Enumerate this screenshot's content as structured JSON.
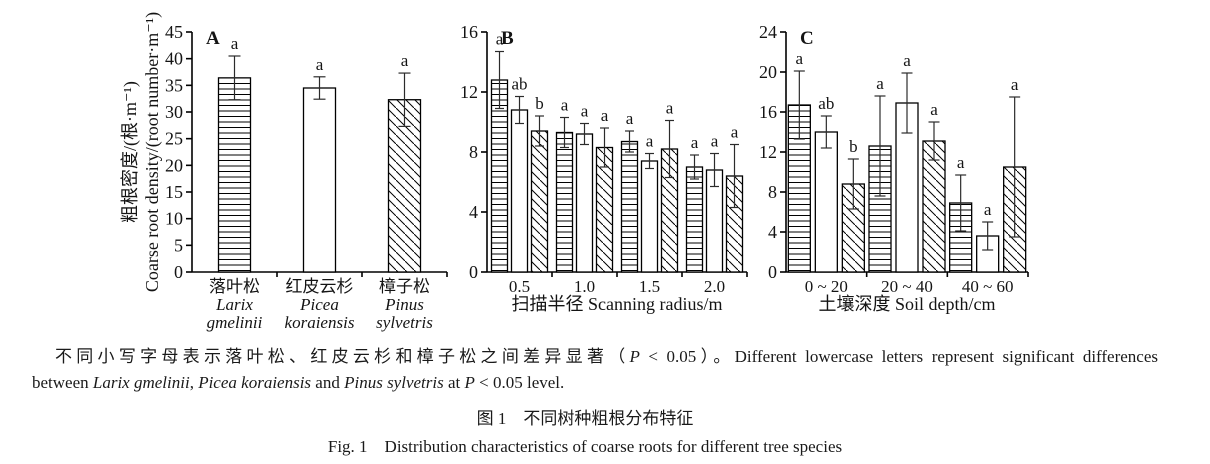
{
  "figure": {
    "note_lines": [
      {
        "segments": [
          {
            "text": "不同小写字母表示落叶松、红皮云杉和樟子松之间差异显著（",
            "italic": false
          },
          {
            "text": "P",
            "italic": true
          },
          {
            "text": " < 0.05）。Different lowercase letters represent significant differences",
            "italic": false
          }
        ]
      },
      {
        "segments": [
          {
            "text": "between ",
            "italic": false
          },
          {
            "text": "Larix gmelinii",
            "italic": true
          },
          {
            "text": ", ",
            "italic": false
          },
          {
            "text": "Picea koraiensis",
            "italic": true
          },
          {
            "text": " and ",
            "italic": false
          },
          {
            "text": "Pinus sylvetris",
            "italic": true
          },
          {
            "text": " at ",
            "italic": false
          },
          {
            "text": "P",
            "italic": true
          },
          {
            "text": " < 0.05 level.",
            "italic": false
          }
        ]
      }
    ],
    "caption_zh": "图 1　不同树种粗根分布特征",
    "caption_en": "Fig. 1　Distribution characteristics of coarse roots for different tree species"
  },
  "chart_data": [
    {
      "type": "bar",
      "panel_label": "A",
      "ylabel_zh": "粗根密度/(根·m⁻¹)",
      "ylabel_en": "Coarse root density/(root number·m⁻¹)",
      "xlabel": "",
      "ylim": [
        0,
        45
      ],
      "ytick_step": 5,
      "groups": [
        {
          "label_lines": [
            {
              "text": "落叶松",
              "italic": false
            },
            {
              "text": "Larix",
              "italic": true
            },
            {
              "text": "gmelinii",
              "italic": true
            }
          ],
          "bars": [
            {
              "species": "Larix gmelinii",
              "pattern": "horizontal",
              "value": 36.4,
              "err": 4.1,
              "letter": "a"
            }
          ]
        },
        {
          "label_lines": [
            {
              "text": "红皮云杉",
              "italic": false
            },
            {
              "text": "Picea",
              "italic": true
            },
            {
              "text": "koraiensis",
              "italic": true
            }
          ],
          "bars": [
            {
              "species": "Picea koraiensis",
              "pattern": "plain",
              "value": 34.5,
              "err": 2.1,
              "letter": "a"
            }
          ]
        },
        {
          "label_lines": [
            {
              "text": "樟子松",
              "italic": false
            },
            {
              "text": "Pinus",
              "italic": true
            },
            {
              "text": "sylvetris",
              "italic": true
            }
          ],
          "bars": [
            {
              "species": "Pinus sylvetris",
              "pattern": "diagonal",
              "value": 32.3,
              "err": 5.0,
              "letter": "a"
            }
          ]
        }
      ]
    },
    {
      "type": "bar",
      "panel_label": "B",
      "xlabel": "扫描半径 Scanning radius/m",
      "ylim": [
        0,
        16
      ],
      "ytick_step": 4,
      "groups": [
        {
          "label_lines": [
            {
              "text": "0.5",
              "italic": false
            }
          ],
          "bars": [
            {
              "species": "Larix gmelinii",
              "pattern": "horizontal",
              "value": 12.8,
              "err": 1.9,
              "letter": "a"
            },
            {
              "species": "Picea koraiensis",
              "pattern": "plain",
              "value": 10.8,
              "err": 0.9,
              "letter": "ab"
            },
            {
              "species": "Pinus sylvetris",
              "pattern": "diagonal",
              "value": 9.4,
              "err": 1.0,
              "letter": "b"
            }
          ]
        },
        {
          "label_lines": [
            {
              "text": "1.0",
              "italic": false
            }
          ],
          "bars": [
            {
              "species": "Larix gmelinii",
              "pattern": "horizontal",
              "value": 9.3,
              "err": 1.0,
              "letter": "a"
            },
            {
              "species": "Picea koraiensis",
              "pattern": "plain",
              "value": 9.2,
              "err": 0.7,
              "letter": "a"
            },
            {
              "species": "Pinus sylvetris",
              "pattern": "diagonal",
              "value": 8.3,
              "err": 1.3,
              "letter": "a"
            }
          ]
        },
        {
          "label_lines": [
            {
              "text": "1.5",
              "italic": false
            }
          ],
          "bars": [
            {
              "species": "Larix gmelinii",
              "pattern": "horizontal",
              "value": 8.7,
              "err": 0.7,
              "letter": "a"
            },
            {
              "species": "Picea koraiensis",
              "pattern": "plain",
              "value": 7.4,
              "err": 0.5,
              "letter": "a"
            },
            {
              "species": "Pinus sylvetris",
              "pattern": "diagonal",
              "value": 8.2,
              "err": 1.9,
              "letter": "a"
            }
          ]
        },
        {
          "label_lines": [
            {
              "text": "2.0",
              "italic": false
            }
          ],
          "bars": [
            {
              "species": "Larix gmelinii",
              "pattern": "horizontal",
              "value": 7.0,
              "err": 0.8,
              "letter": "a"
            },
            {
              "species": "Picea koraiensis",
              "pattern": "plain",
              "value": 6.8,
              "err": 1.1,
              "letter": "a"
            },
            {
              "species": "Pinus sylvetris",
              "pattern": "diagonal",
              "value": 6.4,
              "err": 2.1,
              "letter": "a"
            }
          ]
        }
      ]
    },
    {
      "type": "bar",
      "panel_label": "C",
      "xlabel": "土壤深度 Soil depth/cm",
      "ylim": [
        0,
        24
      ],
      "ytick_step": 4,
      "groups": [
        {
          "label_lines": [
            {
              "text": "0 ~ 20",
              "italic": false
            }
          ],
          "bars": [
            {
              "species": "Larix gmelinii",
              "pattern": "horizontal",
              "value": 16.7,
              "err": 3.4,
              "letter": "a"
            },
            {
              "species": "Picea koraiensis",
              "pattern": "plain",
              "value": 14.0,
              "err": 1.6,
              "letter": "ab"
            },
            {
              "species": "Pinus sylvetris",
              "pattern": "diagonal",
              "value": 8.8,
              "err": 2.5,
              "letter": "b"
            }
          ]
        },
        {
          "label_lines": [
            {
              "text": "20 ~ 40",
              "italic": false
            }
          ],
          "bars": [
            {
              "species": "Larix gmelinii",
              "pattern": "horizontal",
              "value": 12.6,
              "err": 5.0,
              "letter": "a"
            },
            {
              "species": "Picea koraiensis",
              "pattern": "plain",
              "value": 16.9,
              "err": 3.0,
              "letter": "a"
            },
            {
              "species": "Pinus sylvetris",
              "pattern": "diagonal",
              "value": 13.1,
              "err": 1.9,
              "letter": "a"
            }
          ]
        },
        {
          "label_lines": [
            {
              "text": "40 ~ 60",
              "italic": false
            }
          ],
          "bars": [
            {
              "species": "Larix gmelinii",
              "pattern": "horizontal",
              "value": 6.9,
              "err": 2.8,
              "letter": "a"
            },
            {
              "species": "Picea koraiensis",
              "pattern": "plain",
              "value": 3.6,
              "err": 1.4,
              "letter": "a"
            },
            {
              "species": "Pinus sylvetris",
              "pattern": "diagonal",
              "value": 10.5,
              "err": 7.0,
              "letter": "a"
            }
          ]
        }
      ]
    }
  ]
}
